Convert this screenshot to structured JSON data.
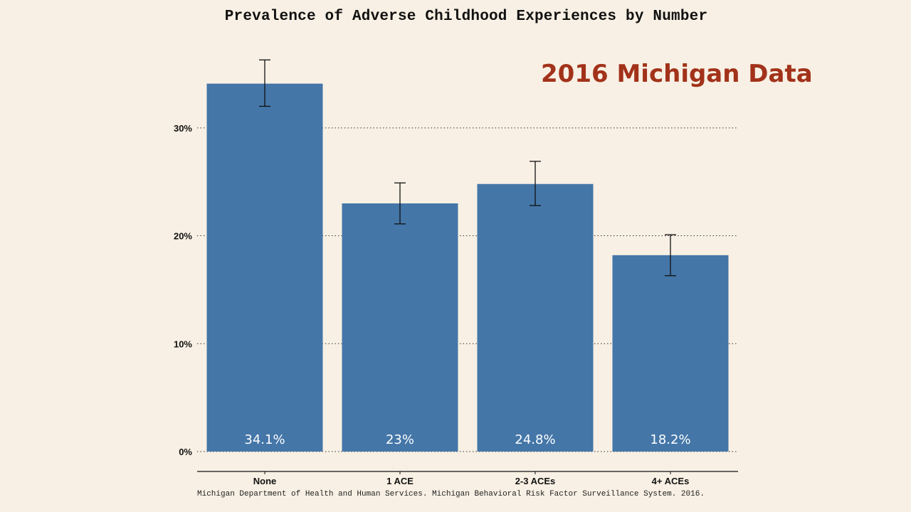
{
  "slide": {
    "overlay_title": "2016 Michigan Data",
    "source_note": "Michigan Department of Health and Human Services. Michigan Behavioral Risk Factor Surveillance System. 2016."
  },
  "chart_data": {
    "type": "bar",
    "title": "Prevalence of Adverse Childhood Experiences by Number",
    "xlabel": "",
    "ylabel": "",
    "categories": [
      "None",
      "1 ACE",
      "2-3 ACEs",
      "4+ ACEs"
    ],
    "values": [
      34.1,
      23,
      24.8,
      18.2
    ],
    "error_low": [
      32.0,
      21.1,
      22.8,
      16.3
    ],
    "error_high": [
      36.3,
      24.9,
      26.9,
      20.1
    ],
    "data_labels": [
      "34.1%",
      "23%",
      "24.8%",
      "18.2%"
    ],
    "y_ticks": [
      0,
      10,
      20,
      30
    ],
    "y_tick_labels": [
      "0%",
      "10%",
      "20%",
      "30%"
    ],
    "ylim": [
      0,
      37.7
    ],
    "grid": "horizontal-dotted",
    "legend": "none",
    "colors": {
      "bar": "#4476a8",
      "data_label": "#ffffff",
      "background": "#f8f0e4",
      "accent": "#a2321a"
    }
  }
}
